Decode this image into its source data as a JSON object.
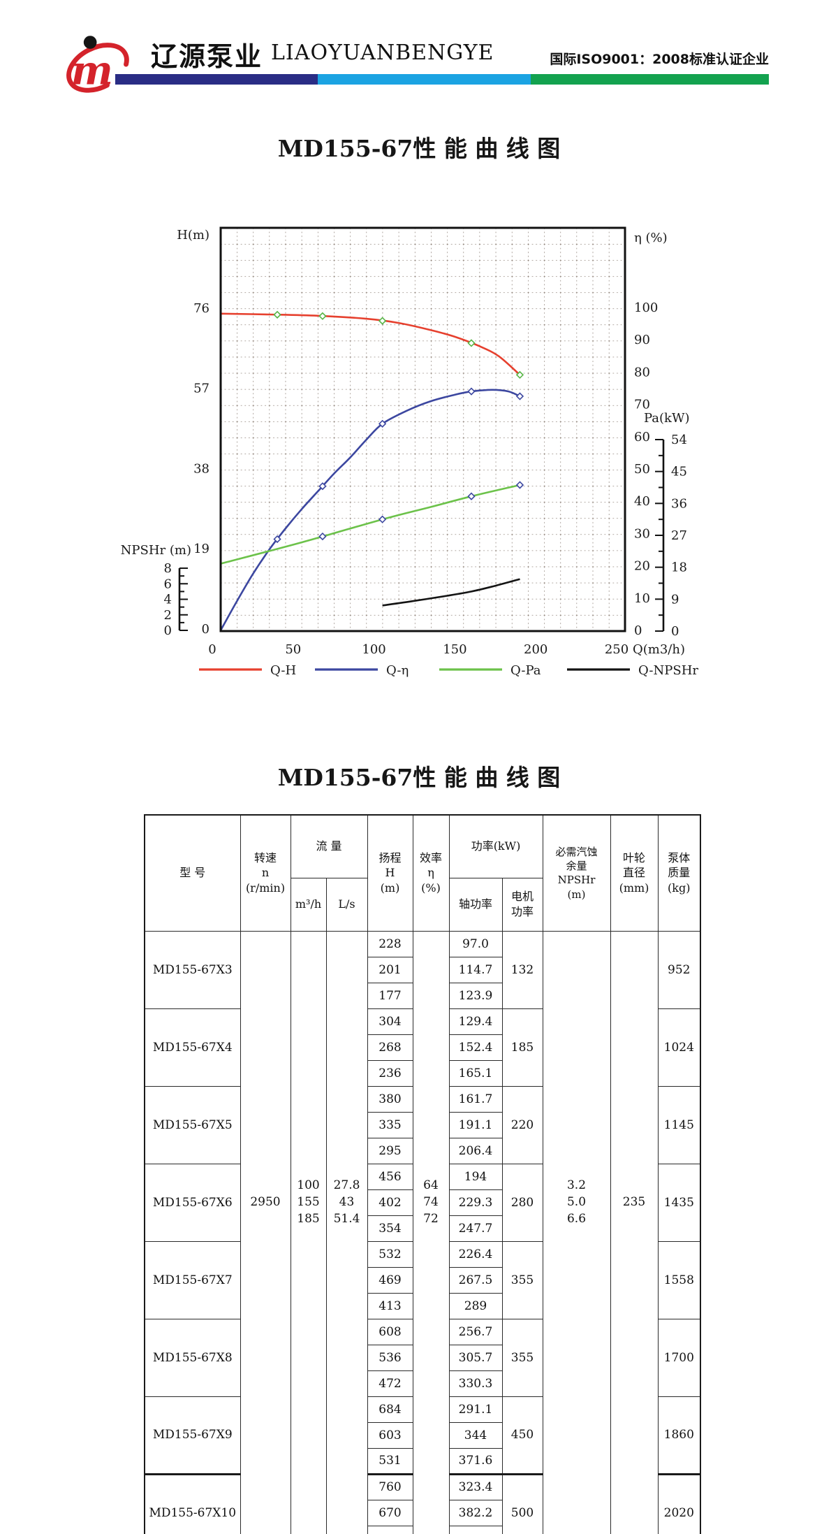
{
  "header": {
    "brand_cn": "辽源泵业",
    "brand_en": "LIAOYUANBENGYE",
    "certification": "国际ISO9001：2008标准认证企业",
    "bar_colors": [
      "#2a2d85",
      "#1ba3e2",
      "#13a24f"
    ],
    "logo_color": "#d4232b"
  },
  "chart": {
    "title": "MD155-67性 能 曲 线 图",
    "axes": {
      "H": {
        "label": "H(m)",
        "ticks": [
          76,
          57,
          38,
          19,
          0
        ]
      },
      "eta": {
        "label": "η (%)",
        "ticks": [
          100,
          90,
          80,
          70,
          60,
          50,
          40,
          30,
          20,
          10,
          0
        ]
      },
      "Pa": {
        "label": "Pa(kW)",
        "ticks": [
          54,
          45,
          36,
          27,
          18,
          9,
          0
        ]
      },
      "NPSHr": {
        "label": "NPSHr (m)",
        "ticks": [
          8,
          6,
          4,
          2,
          0
        ]
      },
      "Q": {
        "label": "Q(m3/h)",
        "ticks": [
          0,
          50,
          100,
          150,
          200,
          250
        ]
      }
    },
    "legend": [
      {
        "name": "Q-H",
        "color": "#e6402e"
      },
      {
        "name": "Q-η",
        "color": "#3c47a0"
      },
      {
        "name": "Q-Pa",
        "color": "#6cc24a"
      },
      {
        "name": "Q-NPSHr",
        "color": "#141414"
      }
    ]
  },
  "chart_data": {
    "type": "line",
    "title": "MD155-67性 能 曲 线 图",
    "xlabel": "Q(m3/h)",
    "x_range": [
      0,
      250
    ],
    "grid": "dotted",
    "series": [
      {
        "name": "Q-H",
        "yaxis": "H",
        "axis_range": [
          0,
          76
        ],
        "color": "#e6402e",
        "marker_color": "#56b545",
        "markers": [
          35,
          63,
          100,
          155,
          185
        ],
        "points": [
          [
            0,
            74.7
          ],
          [
            30,
            74.5
          ],
          [
            60,
            74.2
          ],
          [
            90,
            73.5
          ],
          [
            110,
            72.5
          ],
          [
            130,
            70.8
          ],
          [
            145,
            69.2
          ],
          [
            160,
            67
          ],
          [
            172,
            64.6
          ],
          [
            185,
            60.2
          ]
        ]
      },
      {
        "name": "Q-η",
        "yaxis": "eta",
        "axis_range": [
          0,
          100
        ],
        "color": "#3c47a0",
        "marker_color": "#3c47a0",
        "markers": [
          35,
          63,
          100,
          155,
          185
        ],
        "points": [
          [
            0,
            0
          ],
          [
            10,
            9
          ],
          [
            20,
            17.5
          ],
          [
            30,
            25
          ],
          [
            40,
            31.5
          ],
          [
            50,
            37.5
          ],
          [
            60,
            43
          ],
          [
            70,
            48.5
          ],
          [
            80,
            53.5
          ],
          [
            90,
            59
          ],
          [
            100,
            64
          ],
          [
            115,
            68
          ],
          [
            130,
            71
          ],
          [
            145,
            73
          ],
          [
            155,
            74
          ],
          [
            168,
            74.5
          ],
          [
            178,
            74
          ],
          [
            185,
            72.5
          ]
        ]
      },
      {
        "name": "Q-Pa",
        "yaxis": "Pa",
        "axis_range": [
          0,
          54
        ],
        "color": "#6cc24a",
        "marker_color": "#3c47a0",
        "markers": [
          63,
          100,
          155,
          185
        ],
        "points": [
          [
            0,
            19
          ],
          [
            50,
            25
          ],
          [
            100,
            31.5
          ],
          [
            130,
            35
          ],
          [
            155,
            38
          ],
          [
            185,
            41.2
          ]
        ]
      },
      {
        "name": "Q-NPSHr",
        "yaxis": "NPSHr",
        "axis_range": [
          0,
          8
        ],
        "color": "#141414",
        "marker_color": "",
        "markers": [],
        "points": [
          [
            100,
            3.2
          ],
          [
            120,
            3.8
          ],
          [
            140,
            4.45
          ],
          [
            155,
            5
          ],
          [
            170,
            5.75
          ],
          [
            185,
            6.6
          ]
        ]
      }
    ]
  },
  "table": {
    "title": "MD155-67性 能 曲 线 图",
    "headers": {
      "model": "型 号",
      "speed": "转速\nn\n(r/min)",
      "flow": "流 量",
      "flow_m3h": "m³/h",
      "flow_ls": "L/s",
      "head": "扬程\nH\n(m)",
      "eff": "效率\nη\n(%)",
      "power": "功率(kW)",
      "shaft": "轴功率",
      "motor": "电机\n功率",
      "npshr": "必需汽蚀\n余量\nNPSHr\n(m)",
      "impeller": "叶轮\n直径\n(mm)",
      "mass": "泵体\n质量\n(kg)"
    },
    "shared": {
      "speed": "2950",
      "flow_m3h": "100\n155\n185",
      "flow_ls": "27.8\n43\n51.4",
      "eff": "64\n74\n72",
      "npshr": "3.2\n5.0\n6.6",
      "impeller": "235"
    },
    "groups": [
      {
        "model": "MD155-67X3",
        "H": [
          "228",
          "201",
          "177"
        ],
        "shaft": [
          "97.0",
          "114.7",
          "123.9"
        ],
        "motor": "132",
        "mass": "952"
      },
      {
        "model": "MD155-67X4",
        "H": [
          "304",
          "268",
          "236"
        ],
        "shaft": [
          "129.4",
          "152.4",
          "165.1"
        ],
        "motor": "185",
        "mass": "1024"
      },
      {
        "model": "MD155-67X5",
        "H": [
          "380",
          "335",
          "295"
        ],
        "shaft": [
          "161.7",
          "191.1",
          "206.4"
        ],
        "motor": "220",
        "mass": "1145"
      },
      {
        "model": "MD155-67X6",
        "H": [
          "456",
          "402",
          "354"
        ],
        "shaft": [
          "194",
          "229.3",
          "247.7"
        ],
        "motor": "280",
        "mass": "1435"
      },
      {
        "model": "MD155-67X7",
        "H": [
          "532",
          "469",
          "413"
        ],
        "shaft": [
          "226.4",
          "267.5",
          "289"
        ],
        "motor": "355",
        "mass": "1558"
      },
      {
        "model": "MD155-67X8",
        "H": [
          "608",
          "536",
          "472"
        ],
        "shaft": [
          "256.7",
          "305.7",
          "330.3"
        ],
        "motor": "355",
        "mass": "1700"
      },
      {
        "model": "MD155-67X9",
        "H": [
          "684",
          "603",
          "531"
        ],
        "shaft": [
          "291.1",
          "344",
          "371.6"
        ],
        "motor": "450",
        "mass": "1860"
      },
      {
        "model": "MD155-67X10",
        "H": [
          "760",
          "670",
          ""
        ],
        "shaft": [
          "323.4",
          "382.2",
          ""
        ],
        "motor": "500",
        "mass": "2020"
      }
    ]
  }
}
